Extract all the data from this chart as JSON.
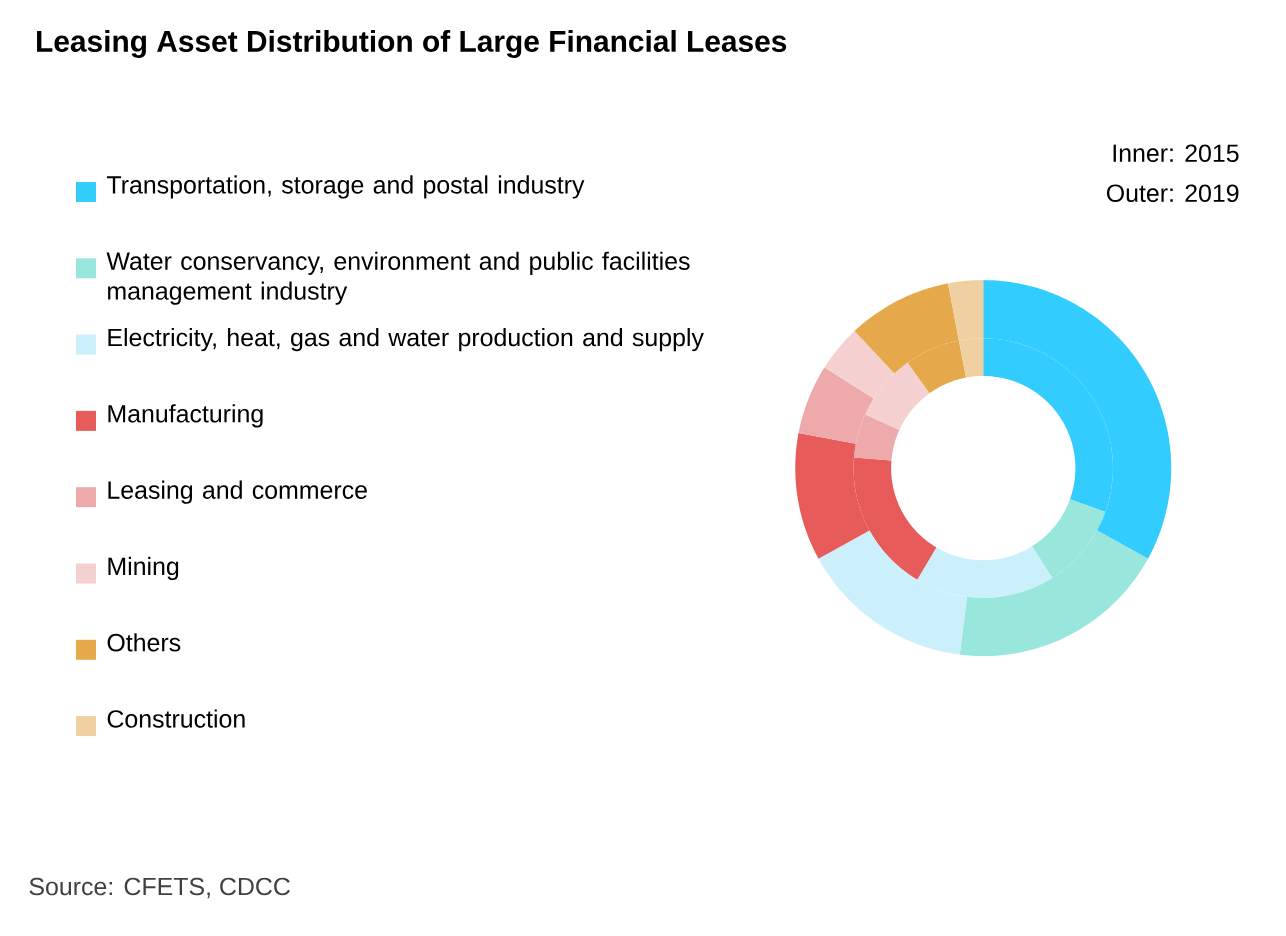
{
  "chart_data": {
    "type": "donut",
    "title": "Leasing Asset Distribution of Large Financial Leases",
    "categories": [
      "Transportation, storage and postal industry",
      "Water conservancy, environment and public facilities management industry",
      "Electricity, heat, gas and water production and supply",
      "Manufacturing",
      "Leasing and commerce",
      "Mining",
      "Others",
      "Construction"
    ],
    "colors": [
      "#33ccff",
      "#99e6dd",
      "#ccf0fb",
      "#e85b5b",
      "#eeaaaa",
      "#f5d0d0",
      "#e5a84b",
      "#f0d0a0"
    ],
    "series": [
      {
        "values": [
          30.5,
          10.6,
          17.4,
          17.8,
          5.5,
          8.3,
          6.9,
          3.0
        ]
      },
      {
        "values": [
          33,
          19,
          15,
          11,
          6,
          4,
          9,
          3
        ]
      }
    ],
    "legend": "left",
    "annotations": [
      "Inner: 2015",
      "Outer: 2019",
      "Source: CFETS, CDCC"
    ]
  }
}
